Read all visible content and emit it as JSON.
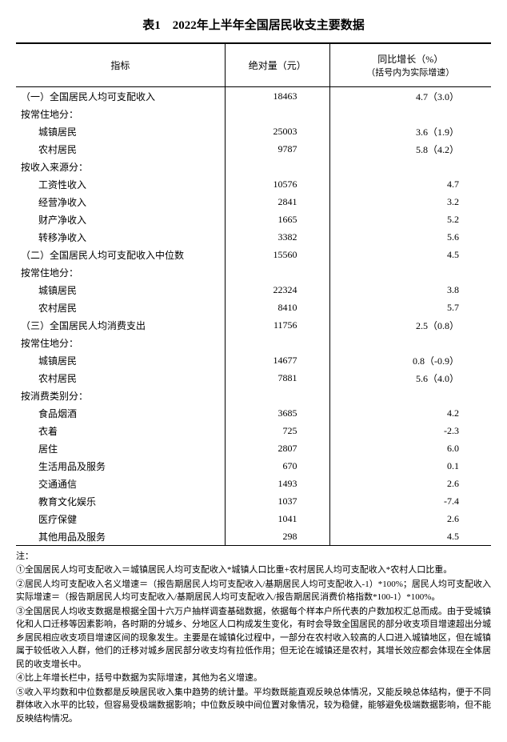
{
  "title": "表1　2022年上半年全国居民收支主要数据",
  "columns": {
    "indicator": "指标",
    "absolute": "绝对量（元）",
    "growth_line1": "同比增长（%）",
    "growth_line2": "（括号内为实际增速）"
  },
  "rows": [
    {
      "label": "（一）全国居民人均可支配收入",
      "indent": 1,
      "abs": "18463",
      "growth": "4.7（3.0）"
    },
    {
      "label": "按常住地分：",
      "indent": 1,
      "abs": "",
      "growth": ""
    },
    {
      "label": "城镇居民",
      "indent": 2,
      "abs": "25003",
      "growth": "3.6（1.9）"
    },
    {
      "label": "农村居民",
      "indent": 2,
      "abs": "9787",
      "growth": "5.8（4.2）"
    },
    {
      "label": "按收入来源分：",
      "indent": 1,
      "abs": "",
      "growth": ""
    },
    {
      "label": "工资性收入",
      "indent": 2,
      "abs": "10576",
      "growth": "4.7"
    },
    {
      "label": "经营净收入",
      "indent": 2,
      "abs": "2841",
      "growth": "3.2"
    },
    {
      "label": "财产净收入",
      "indent": 2,
      "abs": "1665",
      "growth": "5.2"
    },
    {
      "label": "转移净收入",
      "indent": 2,
      "abs": "3382",
      "growth": "5.6"
    },
    {
      "label": "（二）全国居民人均可支配收入中位数",
      "indent": 1,
      "abs": "15560",
      "growth": "4.5"
    },
    {
      "label": "按常住地分：",
      "indent": 1,
      "abs": "",
      "growth": ""
    },
    {
      "label": "城镇居民",
      "indent": 2,
      "abs": "22324",
      "growth": "3.8"
    },
    {
      "label": "农村居民",
      "indent": 2,
      "abs": "8410",
      "growth": "5.7"
    },
    {
      "label": "（三）全国居民人均消费支出",
      "indent": 1,
      "abs": "11756",
      "growth": "2.5（0.8）"
    },
    {
      "label": "按常住地分：",
      "indent": 1,
      "abs": "",
      "growth": ""
    },
    {
      "label": "城镇居民",
      "indent": 2,
      "abs": "14677",
      "growth": "0.8（-0.9）"
    },
    {
      "label": "农村居民",
      "indent": 2,
      "abs": "7881",
      "growth": "5.6（4.0）"
    },
    {
      "label": "按消费类别分：",
      "indent": 1,
      "abs": "",
      "growth": ""
    },
    {
      "label": "食品烟酒",
      "indent": 2,
      "abs": "3685",
      "growth": "4.2"
    },
    {
      "label": "衣着",
      "indent": 2,
      "abs": "725",
      "growth": "-2.3"
    },
    {
      "label": "居住",
      "indent": 2,
      "abs": "2807",
      "growth": "6.0"
    },
    {
      "label": "生活用品及服务",
      "indent": 2,
      "abs": "670",
      "growth": "0.1"
    },
    {
      "label": "交通通信",
      "indent": 2,
      "abs": "1493",
      "growth": "2.6"
    },
    {
      "label": "教育文化娱乐",
      "indent": 2,
      "abs": "1037",
      "growth": "-7.4"
    },
    {
      "label": "医疗保健",
      "indent": 2,
      "abs": "1041",
      "growth": "2.6"
    },
    {
      "label": "其他用品及服务",
      "indent": 2,
      "abs": "298",
      "growth": "4.5"
    }
  ],
  "notes_label": "注：",
  "notes": [
    "①全国居民人均可支配收入＝城镇居民人均可支配收入*城镇人口比重+农村居民人均可支配收入*农村人口比重。",
    "②居民人均可支配收入名义增速＝（报告期居民人均可支配收入/基期居民人均可支配收入-1）*100%；居民人均可支配收入实际增速＝（报告期居民人均可支配收入/基期居民人均可支配收入/报告期居民消费价格指数*100-1）*100%。",
    "③全国居民人均收支数据是根据全国十六万户抽样调查基础数据，依据每个样本户所代表的户数加权汇总而成。由于受城镇化和人口迁移等因素影响，各时期的分城乡、分地区人口构成发生变化，有时会导致全国居民的部分收支项目增速超出分城乡居民相应收支项目增速区间的现象发生。主要是在城镇化过程中，一部分在农村收入较高的人口进入城镇地区，但在城镇属于较低收入人群，他们的迁移对城乡居民部分收支均有拉低作用；但无论在城镇还是农村，其增长效应都会体现在全体居民的收支增长中。",
    "④比上年增长栏中，括号中数据为实际增速，其他为名义增速。",
    "⑤收入平均数和中位数都是反映居民收入集中趋势的统计量。平均数既能直观反映总体情况，又能反映总体结构，便于不同群体收入水平的比较，但容易受极端数据影响；中位数反映中间位置对象情况，较为稳健，能够避免极端数据影响，但不能反映结构情况。"
  ]
}
